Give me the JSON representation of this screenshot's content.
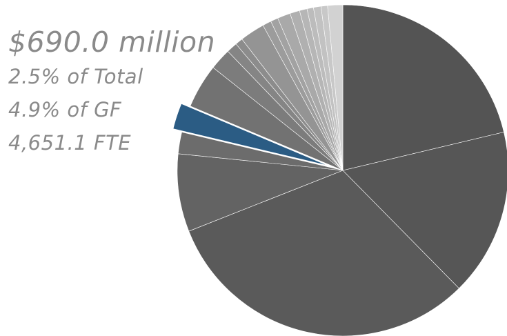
{
  "chart_data": {
    "type": "pie",
    "title": "",
    "start_angle_deg": 0,
    "direction": "clockwise",
    "slices": [
      {
        "value": 20.2,
        "color": "#545454"
      },
      {
        "value": 15.5,
        "color": "#565656"
      },
      {
        "value": 29.8,
        "color": "#5a5a5a"
      },
      {
        "value": 7.2,
        "color": "#636363"
      },
      {
        "value": 2.0,
        "color": "#6c6c6c"
      },
      {
        "value": 2.5,
        "color": "#2b5c84",
        "highlighted": true
      },
      {
        "value": 4.1,
        "color": "#727272"
      },
      {
        "value": 2.0,
        "color": "#7c7c7c"
      },
      {
        "value": 1.0,
        "color": "#858585"
      },
      {
        "value": 0.7,
        "color": "#8c8c8c"
      },
      {
        "value": 2.3,
        "color": "#949494"
      },
      {
        "value": 0.8,
        "color": "#9c9c9c"
      },
      {
        "value": 0.7,
        "color": "#a2a2a2"
      },
      {
        "value": 1.2,
        "color": "#a9a9a9"
      },
      {
        "value": 0.9,
        "color": "#b0b0b0"
      },
      {
        "value": 0.7,
        "color": "#b6b6b6"
      },
      {
        "value": 0.6,
        "color": "#bcbcbc"
      },
      {
        "value": 0.7,
        "color": "#c2c2c2"
      },
      {
        "value": 0.6,
        "color": "#c8c8c8"
      },
      {
        "value": 1.4,
        "color": "#d2d2d2"
      }
    ],
    "callout": {
      "amount": "$690.0 million",
      "share_total": "2.5% of Total",
      "share_gf": "4.9% of GF",
      "fte": "4,651.1 FTE"
    }
  },
  "colors": {
    "highlight": "#2b5c84",
    "callout_text": "#8a8a8a"
  }
}
